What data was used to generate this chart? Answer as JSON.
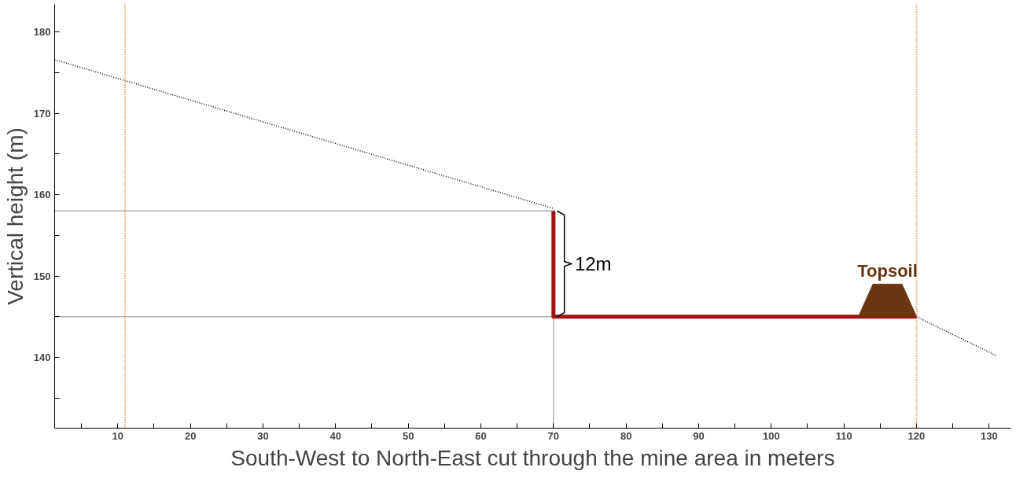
{
  "chart_data": {
    "type": "line",
    "xlabel": "South-West to North-East cut through the mine area in meters",
    "ylabel": "Vertical height (m)",
    "xlim": [
      1.3,
      133
    ],
    "ylim": [
      131.3,
      183.4
    ],
    "xticks": [
      {
        "value": 5,
        "label": null
      },
      10,
      {
        "value": 15,
        "label": null
      },
      20,
      {
        "value": 25,
        "label": null
      },
      30,
      {
        "value": 35,
        "label": null
      },
      40,
      {
        "value": 45,
        "label": null
      },
      50,
      {
        "value": 55,
        "label": null
      },
      60,
      {
        "value": 65,
        "label": null
      },
      70,
      {
        "value": 75,
        "label": null
      },
      80,
      {
        "value": 85,
        "label": null
      },
      90,
      {
        "value": 95,
        "label": null
      },
      100,
      {
        "value": 105,
        "label": null
      },
      110,
      {
        "value": 115,
        "label": null
      },
      120,
      {
        "value": 125,
        "label": null
      },
      130
    ],
    "yticks": [
      {
        "value": 135,
        "label": null
      },
      140,
      {
        "value": 145,
        "label": null
      },
      150,
      {
        "value": 155,
        "label": null
      },
      160,
      {
        "value": 165,
        "label": null
      },
      170,
      {
        "value": 175,
        "label": null
      },
      180
    ],
    "grid": false,
    "series": [
      {
        "color": "#000000",
        "line_style": "dotted",
        "x": [
          1.3,
          70
        ],
        "values": [
          176.6,
          158.3
        ]
      },
      {
        "color": "#000000",
        "line_style": "dotted",
        "x": [
          120,
          131
        ],
        "values": [
          145,
          140.2
        ]
      },
      {
        "color": "#b0b0b0",
        "line_style": "solid",
        "x": [
          1.3,
          70
        ],
        "values": [
          158,
          158
        ]
      },
      {
        "color": "#b0b0b0",
        "line_style": "solid",
        "x": [
          1.3,
          70
        ],
        "values": [
          145,
          145
        ]
      },
      {
        "color": "#b0b0b0",
        "line_style": "solid",
        "x": [
          70,
          70
        ],
        "values": [
          131.3,
          145
        ]
      },
      {
        "color": "#a01010",
        "line_style": "solid",
        "x": [
          70,
          70,
          120
        ],
        "values": [
          158,
          145,
          145
        ]
      },
      {
        "color": "#000000",
        "line_style": "solid",
        "x": [
          70.5,
          71.5,
          71.5,
          72.5,
          71.5,
          71.5,
          70.5
        ],
        "values": [
          158,
          157.5,
          151.8,
          151.5,
          151.2,
          145.5,
          145
        ]
      },
      {
        "type": "area",
        "color": "#6b3510",
        "x": [
          112,
          114,
          118,
          120
        ],
        "values": [
          145,
          149,
          149,
          145
        ]
      }
    ],
    "ref_lines": [
      {
        "axis": "x",
        "value": 11,
        "color": "#d07a30",
        "line_style": "dotted"
      },
      {
        "axis": "x",
        "value": 120,
        "color": "#d07a30",
        "line_style": "dotted"
      }
    ],
    "annotations": [
      "12m",
      "Topsoil"
    ]
  }
}
